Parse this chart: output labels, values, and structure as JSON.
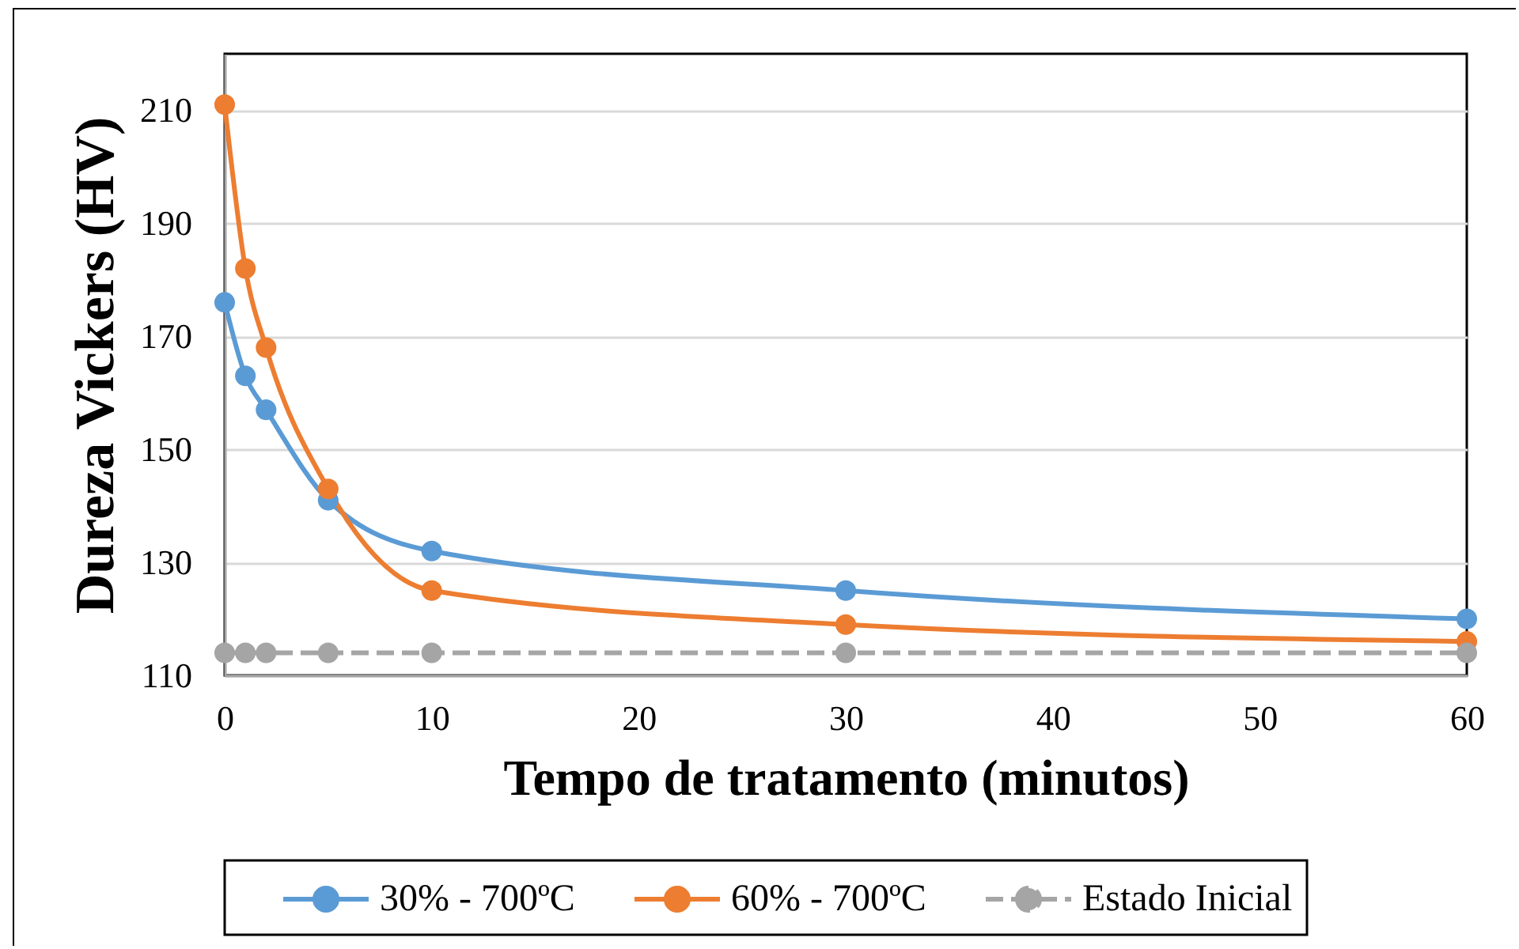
{
  "chart_data": {
    "type": "line",
    "xlabel": "Tempo de tratamento (minutos)",
    "ylabel": "Dureza Vickers (HV)",
    "x": [
      0,
      1,
      2,
      5,
      10,
      30,
      60
    ],
    "xlim": [
      0,
      60
    ],
    "xticks": [
      0,
      10,
      20,
      30,
      40,
      50,
      60
    ],
    "ylim": [
      110,
      220
    ],
    "yticks": [
      110,
      130,
      150,
      170,
      190,
      210
    ],
    "grid": "y",
    "legend": "bottom",
    "marker": "circle",
    "line_style": "solid",
    "series": [
      {
        "name": "30% - 700ºC",
        "color": "#5b9bd5",
        "values": [
          176,
          163,
          157,
          141,
          132,
          125,
          120
        ]
      },
      {
        "name": "60% - 700ºC",
        "color": "#ed7d31",
        "values": [
          211,
          182,
          168,
          143,
          125,
          119,
          116
        ]
      },
      {
        "name": "Estado Inicial",
        "color": "#a5a5a5",
        "line_style": "dashed",
        "values": [
          114,
          114,
          114,
          114,
          114,
          114,
          114
        ]
      }
    ]
  }
}
